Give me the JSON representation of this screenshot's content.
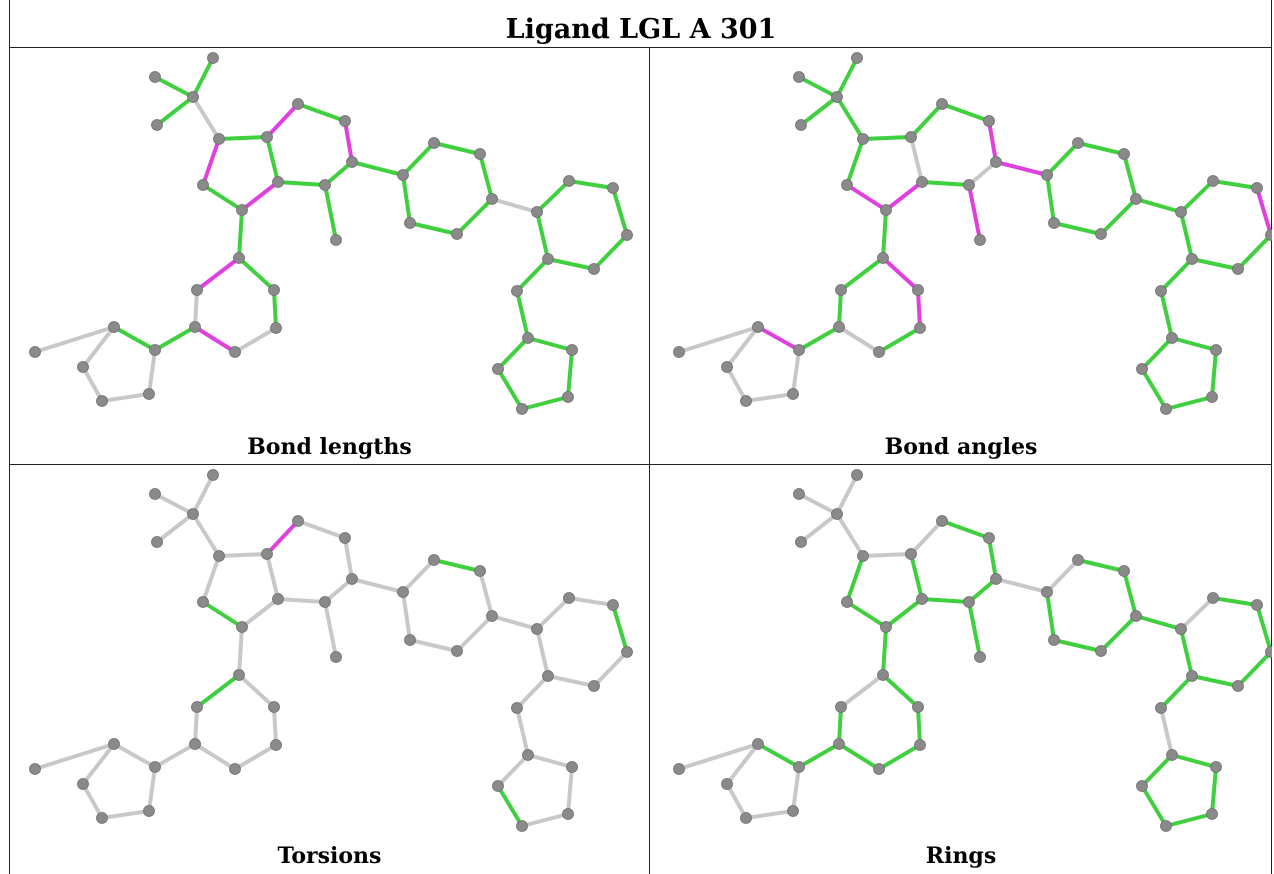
{
  "header": {
    "title": "Ligand LGL A 301"
  },
  "panels": [
    {
      "id": "bond-lengths",
      "caption": "Bond lengths"
    },
    {
      "id": "bond-angles",
      "caption": "Bond angles"
    },
    {
      "id": "torsions",
      "caption": "Torsions"
    },
    {
      "id": "rings",
      "caption": "Rings"
    }
  ],
  "colors": {
    "ok": "#3fcf3f",
    "outlier": "#e040e0",
    "neutral": "#c8c8c8",
    "atom": "#8a8a8a"
  },
  "legend_meaning": {
    "g": "ok",
    "m": "outlier",
    "w": "neutral"
  },
  "bond_colors": {
    "bond-lengths": "gggwgmgmgggmgmggggggggwggggggggggggggmwmwgggg",
    "bond-angles": "gggggggmwgwmmgmmgggggggggmgggggggggggggwgmmgm",
    "torsions": "wwwwwmwwwwwwgwwwwgwwwwwwwgwwwwwwgwwwwgwwwwwww",
    "rings": "wwwwwwgggggggggwwggggggwggggggwggggggwggggggg"
  }
}
